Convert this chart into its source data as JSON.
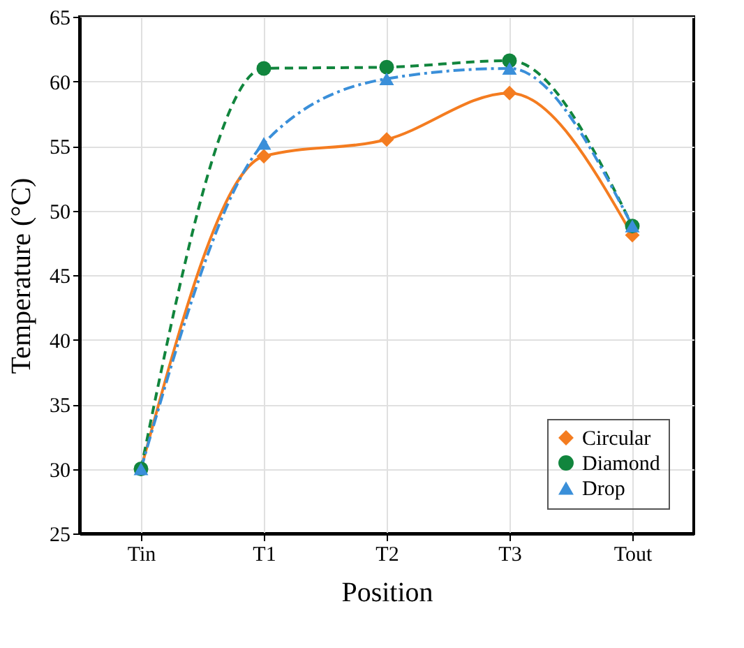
{
  "chart_data": {
    "type": "line",
    "xlabel": "Position",
    "ylabel": "Temperature (°C)",
    "categories": [
      "Tin",
      "T1",
      "T2",
      "T3",
      "Tout"
    ],
    "series": [
      {
        "name": "Circular",
        "color": "#f47c20",
        "marker": "diamond",
        "line_style": "solid",
        "values": [
          30,
          54.2,
          55.5,
          59.1,
          48.1
        ]
      },
      {
        "name": "Diamond",
        "color": "#11853d",
        "marker": "circle",
        "line_style": "dashed",
        "values": [
          30,
          61.0,
          61.1,
          61.6,
          48.8
        ]
      },
      {
        "name": "Drop",
        "color": "#3a8fd9",
        "marker": "triangle",
        "line_style": "dashed",
        "values": [
          30,
          55.2,
          60.2,
          61.0,
          48.8
        ]
      }
    ],
    "ylim": [
      25,
      65
    ],
    "yticks": [
      25,
      30,
      35,
      40,
      45,
      50,
      55,
      60,
      65
    ],
    "grid": true,
    "legend": "bottom right"
  }
}
